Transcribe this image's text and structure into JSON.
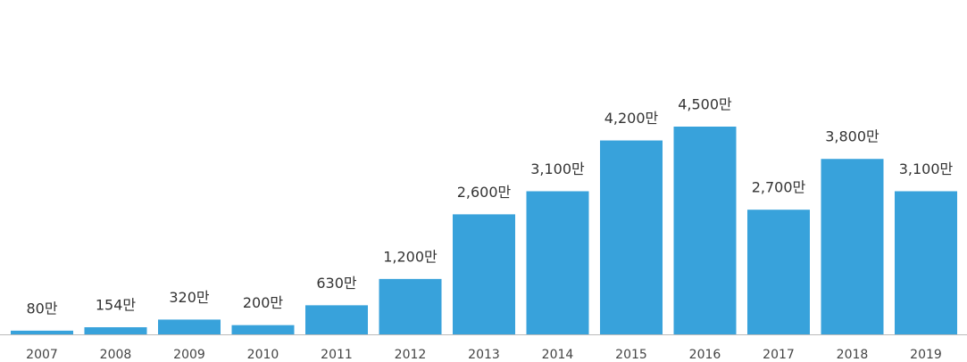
{
  "chart_data": {
    "type": "bar",
    "categories": [
      "2007",
      "2008",
      "2009",
      "2010",
      "2011",
      "2012",
      "2013",
      "2014",
      "2015",
      "2016",
      "2017",
      "2018",
      "2019"
    ],
    "values": [
      80,
      154,
      320,
      200,
      630,
      1200,
      2600,
      3100,
      4200,
      4500,
      2700,
      3800,
      3100
    ],
    "value_labels": [
      "80만",
      "154만",
      "320만",
      "200만",
      "630만",
      "1,200만",
      "2,600만",
      "3,100만",
      "4,200만",
      "4,500만",
      "2,700만",
      "3,800만",
      "3,100만"
    ],
    "color": "#38a2db"
  }
}
